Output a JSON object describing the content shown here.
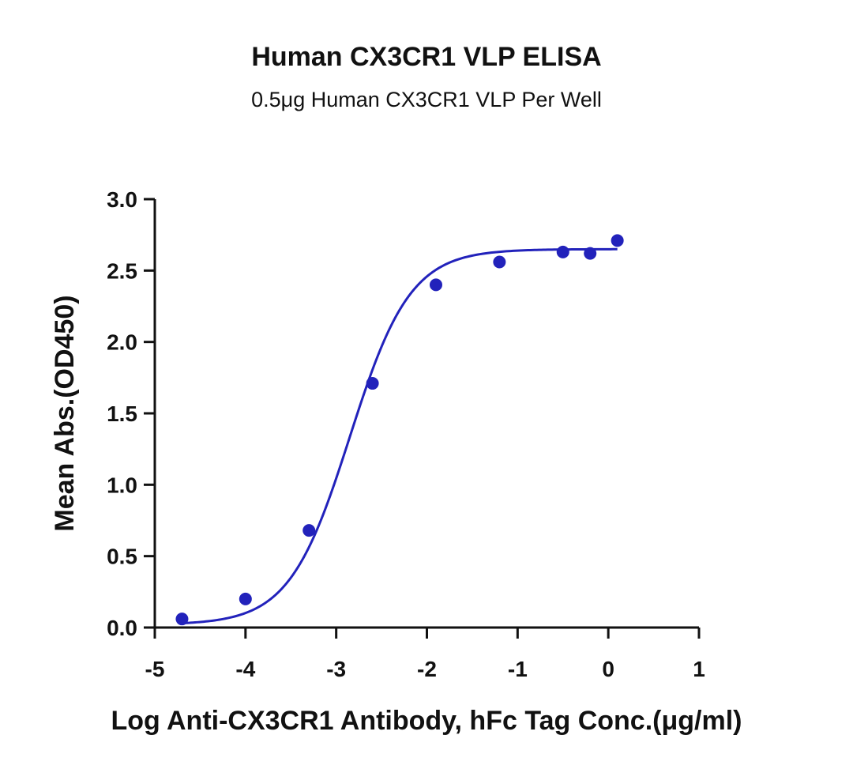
{
  "chart_data": {
    "type": "scatter",
    "title": "Human CX3CR1 VLP ELISA",
    "subtitle": "0.5μg Human CX3CR1 VLP Per Well",
    "xlabel": "Log Anti-CX3CR1 Antibody, hFc Tag Conc.(μg/ml)",
    "ylabel": "Mean Abs.(OD450)",
    "xlim": [
      -5,
      1
    ],
    "ylim": [
      0,
      3.0
    ],
    "x_ticks": [
      "-5",
      "-4",
      "-3",
      "-2",
      "-1",
      "0",
      "1"
    ],
    "y_ticks": [
      "0.0",
      "0.5",
      "1.0",
      "1.5",
      "2.0",
      "2.5",
      "3.0"
    ],
    "grid": false,
    "legend": "none",
    "series": [
      {
        "color": "#2222bb",
        "points": [
          {
            "x": -4.7,
            "y": 0.06
          },
          {
            "x": -4.0,
            "y": 0.2
          },
          {
            "x": -3.3,
            "y": 0.68
          },
          {
            "x": -2.6,
            "y": 1.71
          },
          {
            "x": -1.9,
            "y": 2.4
          },
          {
            "x": -1.2,
            "y": 2.56
          },
          {
            "x": -0.5,
            "y": 2.63
          },
          {
            "x": -0.2,
            "y": 2.62
          },
          {
            "x": 0.1,
            "y": 2.71
          }
        ],
        "fit": {
          "model": "4PL",
          "bottom": 0.02,
          "top": 2.65,
          "log_ec50": -2.85,
          "hill_slope": 1.3,
          "x_range": [
            -4.7,
            0.1
          ]
        }
      }
    ]
  }
}
